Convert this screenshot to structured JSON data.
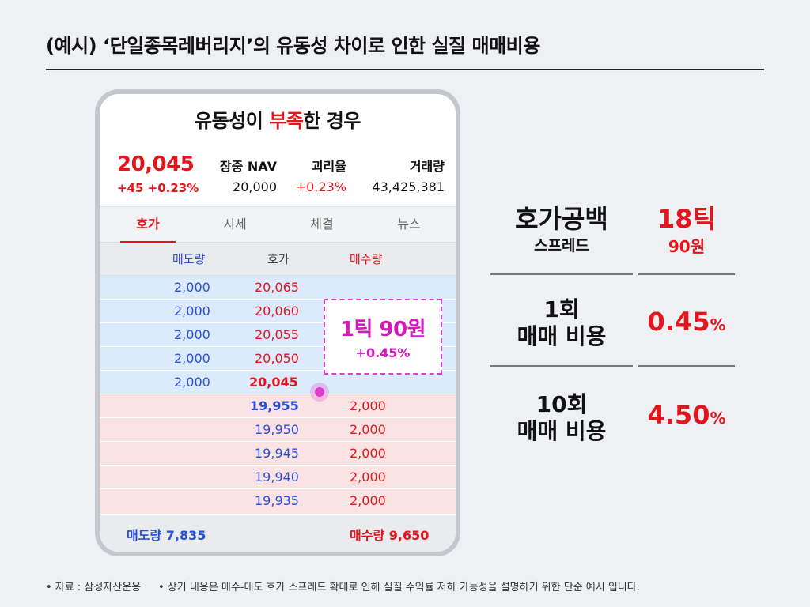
{
  "title": "(예시) ‘단일종목레버리지’의 유동성 차이로 인한 실질 매매비용",
  "phone": {
    "heading_pre": "유동성이 ",
    "heading_accent": "부족",
    "heading_post": "한 경우",
    "price": "20,045",
    "change": "+45  +0.23%",
    "nav_label": "장중 NAV",
    "nav_value": "20,000",
    "premium_label": "괴리율",
    "premium_value": "+0.23%",
    "volume_label": "거래량",
    "volume_value": "43,425,381",
    "tabs": [
      "호가",
      "시세",
      "체결",
      "뉴스"
    ],
    "ob_header": {
      "sell_qty": "매도량",
      "price": "호가",
      "buy_qty": "매수량"
    },
    "asks": [
      {
        "qty": "2,000",
        "price": "20,065"
      },
      {
        "qty": "2,000",
        "price": "20,060"
      },
      {
        "qty": "2,000",
        "price": "20,055"
      },
      {
        "qty": "2,000",
        "price": "20,050"
      },
      {
        "qty": "2,000",
        "price": "20,045"
      }
    ],
    "bids": [
      {
        "price": "19,955",
        "qty": "2,000"
      },
      {
        "price": "19,950",
        "qty": "2,000"
      },
      {
        "price": "19,945",
        "qty": "2,000"
      },
      {
        "price": "19,940",
        "qty": "2,000"
      },
      {
        "price": "19,935",
        "qty": "2,000"
      }
    ],
    "callout_main": "1틱 90원",
    "callout_sub": "+0.45%",
    "footer_sell": "매도량 7,835",
    "footer_buy": "매수량 9,650"
  },
  "metrics": {
    "spread_label": "호가공백",
    "spread_sub": "스프레드",
    "spread_value": "18틱",
    "spread_value_sub": "90원",
    "once_label_1": "1회",
    "once_label_2": "매매 비용",
    "once_value": "0.45",
    "ten_label_1": "10회",
    "ten_label_2": "매매 비용",
    "ten_value": "4.50",
    "percent_sign": "%"
  },
  "footnotes": {
    "source": "• 자료 : 삼성자산운용",
    "note": "• 상기 내용은 매수-매도 호가 스프레드 확대로 인해 실질 수익률 저하 가능성을 설명하기 위한 단순 예시 입니다."
  },
  "colors": {
    "accent": "#e4151c",
    "blue": "#2a4fd8",
    "magenta": "#d119bd"
  }
}
